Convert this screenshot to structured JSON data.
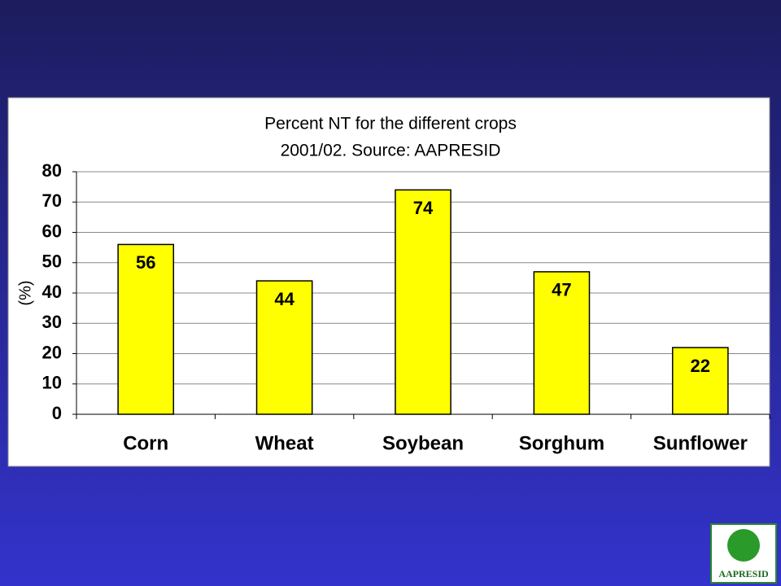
{
  "chart_data": {
    "type": "bar",
    "title": "Percent NT for the different crops",
    "subtitle": "2001/02. Source: AAPRESID",
    "y_label": "(%)",
    "categories": [
      "Corn",
      "Wheat",
      "Soybean",
      "Sorghum",
      "Sunflower"
    ],
    "values": [
      56,
      44,
      74,
      47,
      22
    ],
    "color": "#ffff00",
    "ylim": [
      0,
      80
    ],
    "yticks": [
      0,
      10,
      20,
      30,
      40,
      50,
      60,
      70,
      80
    ],
    "grid": true
  },
  "logo": {
    "text": "AAPRESID"
  }
}
